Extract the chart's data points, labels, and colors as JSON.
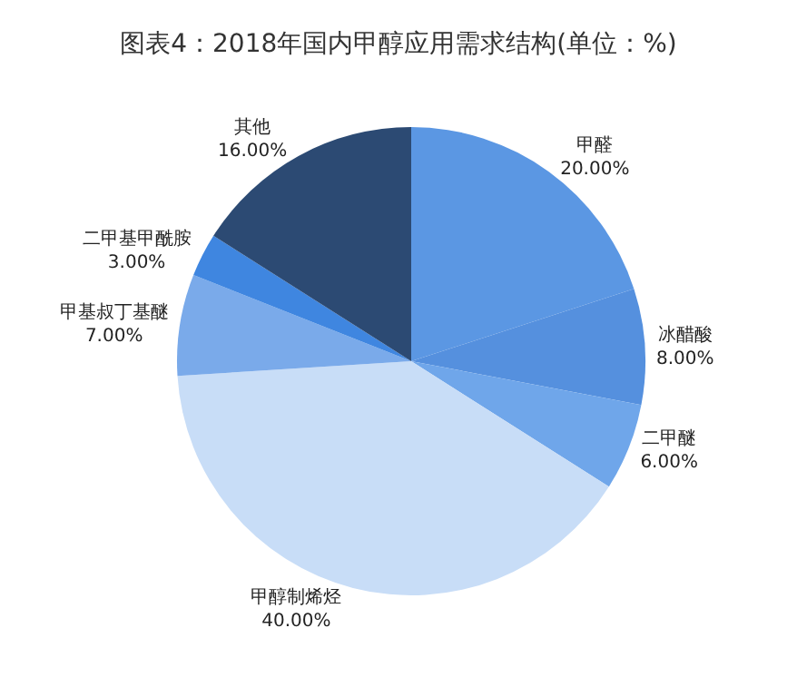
{
  "chart_data": {
    "type": "pie",
    "title": "图表4：2018年国内甲醇应用需求结构(单位：%)",
    "categories": [
      "甲醛",
      "冰醋酸",
      "二甲醚",
      "甲醇制烯烃",
      "甲基叔丁基醚",
      "二甲基甲酰胺",
      "其他"
    ],
    "values": [
      20,
      8,
      6,
      40,
      7,
      3,
      16
    ],
    "value_labels": [
      "20.00%",
      "8.00%",
      "6.00%",
      "40.00%",
      "7.00%",
      "3.00%",
      "16.00%"
    ],
    "colors": [
      "#5b97e3",
      "#5590de",
      "#6fa6ea",
      "#c8ddf7",
      "#7aaaea",
      "#3f86e0",
      "#2c4a73"
    ],
    "legend": false
  }
}
